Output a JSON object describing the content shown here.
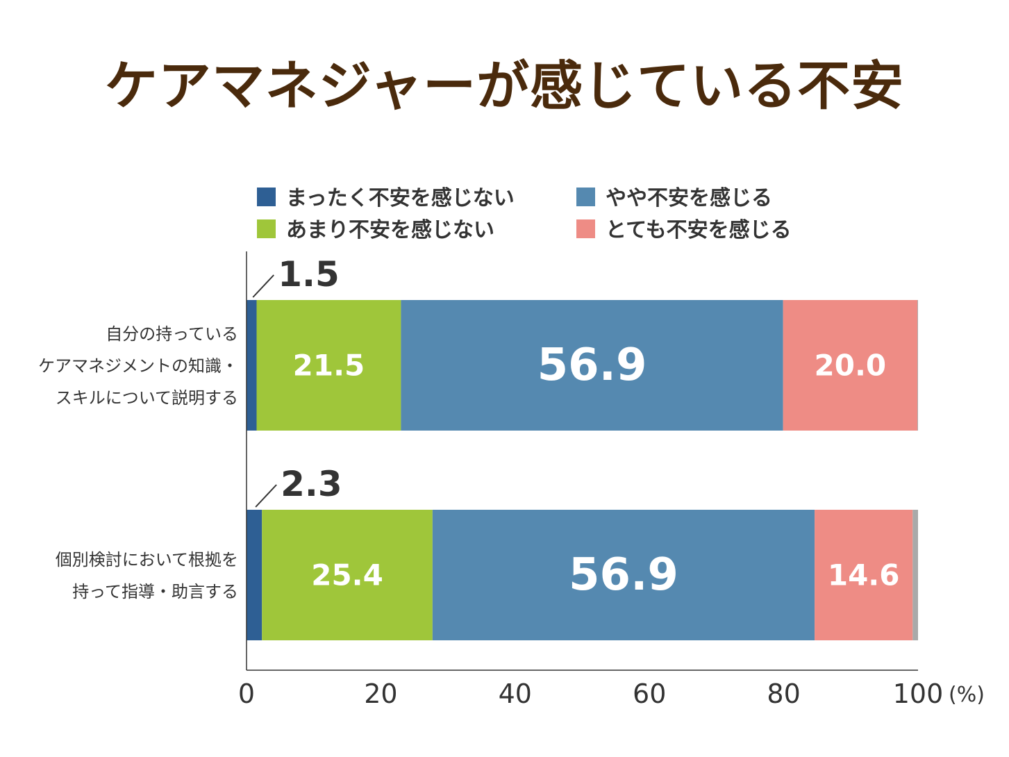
{
  "chart_data": {
    "type": "bar",
    "orientation": "horizontal",
    "stacked": true,
    "title": "ケアマネジャーが感じている不安",
    "categories": [
      [
        "自分の持っている",
        "ケアマネジメントの知識・",
        "スキルについて説明する"
      ],
      [
        "個別検討において根拠を",
        "持って指導・助言する"
      ]
    ],
    "series": [
      {
        "name": "まったく不安を感じない",
        "color": "#2e5f94",
        "values": [
          1.5,
          2.3
        ]
      },
      {
        "name": "あまり不安を感じない",
        "color": "#9fc63a",
        "values": [
          21.5,
          25.4
        ]
      },
      {
        "name": "やや不安を感じる",
        "color": "#5589b0",
        "values": [
          56.9,
          56.9
        ]
      },
      {
        "name": "とても不安を感じる",
        "color": "#ee8c85",
        "values": [
          20.0,
          14.6
        ]
      }
    ],
    "remainder_color": "#a9a9a9",
    "xlim": [
      0,
      100
    ],
    "xticks": [
      "0",
      "20",
      "40",
      "60",
      "80",
      "100"
    ],
    "x_unit": "(%)",
    "legend_position": "top"
  }
}
